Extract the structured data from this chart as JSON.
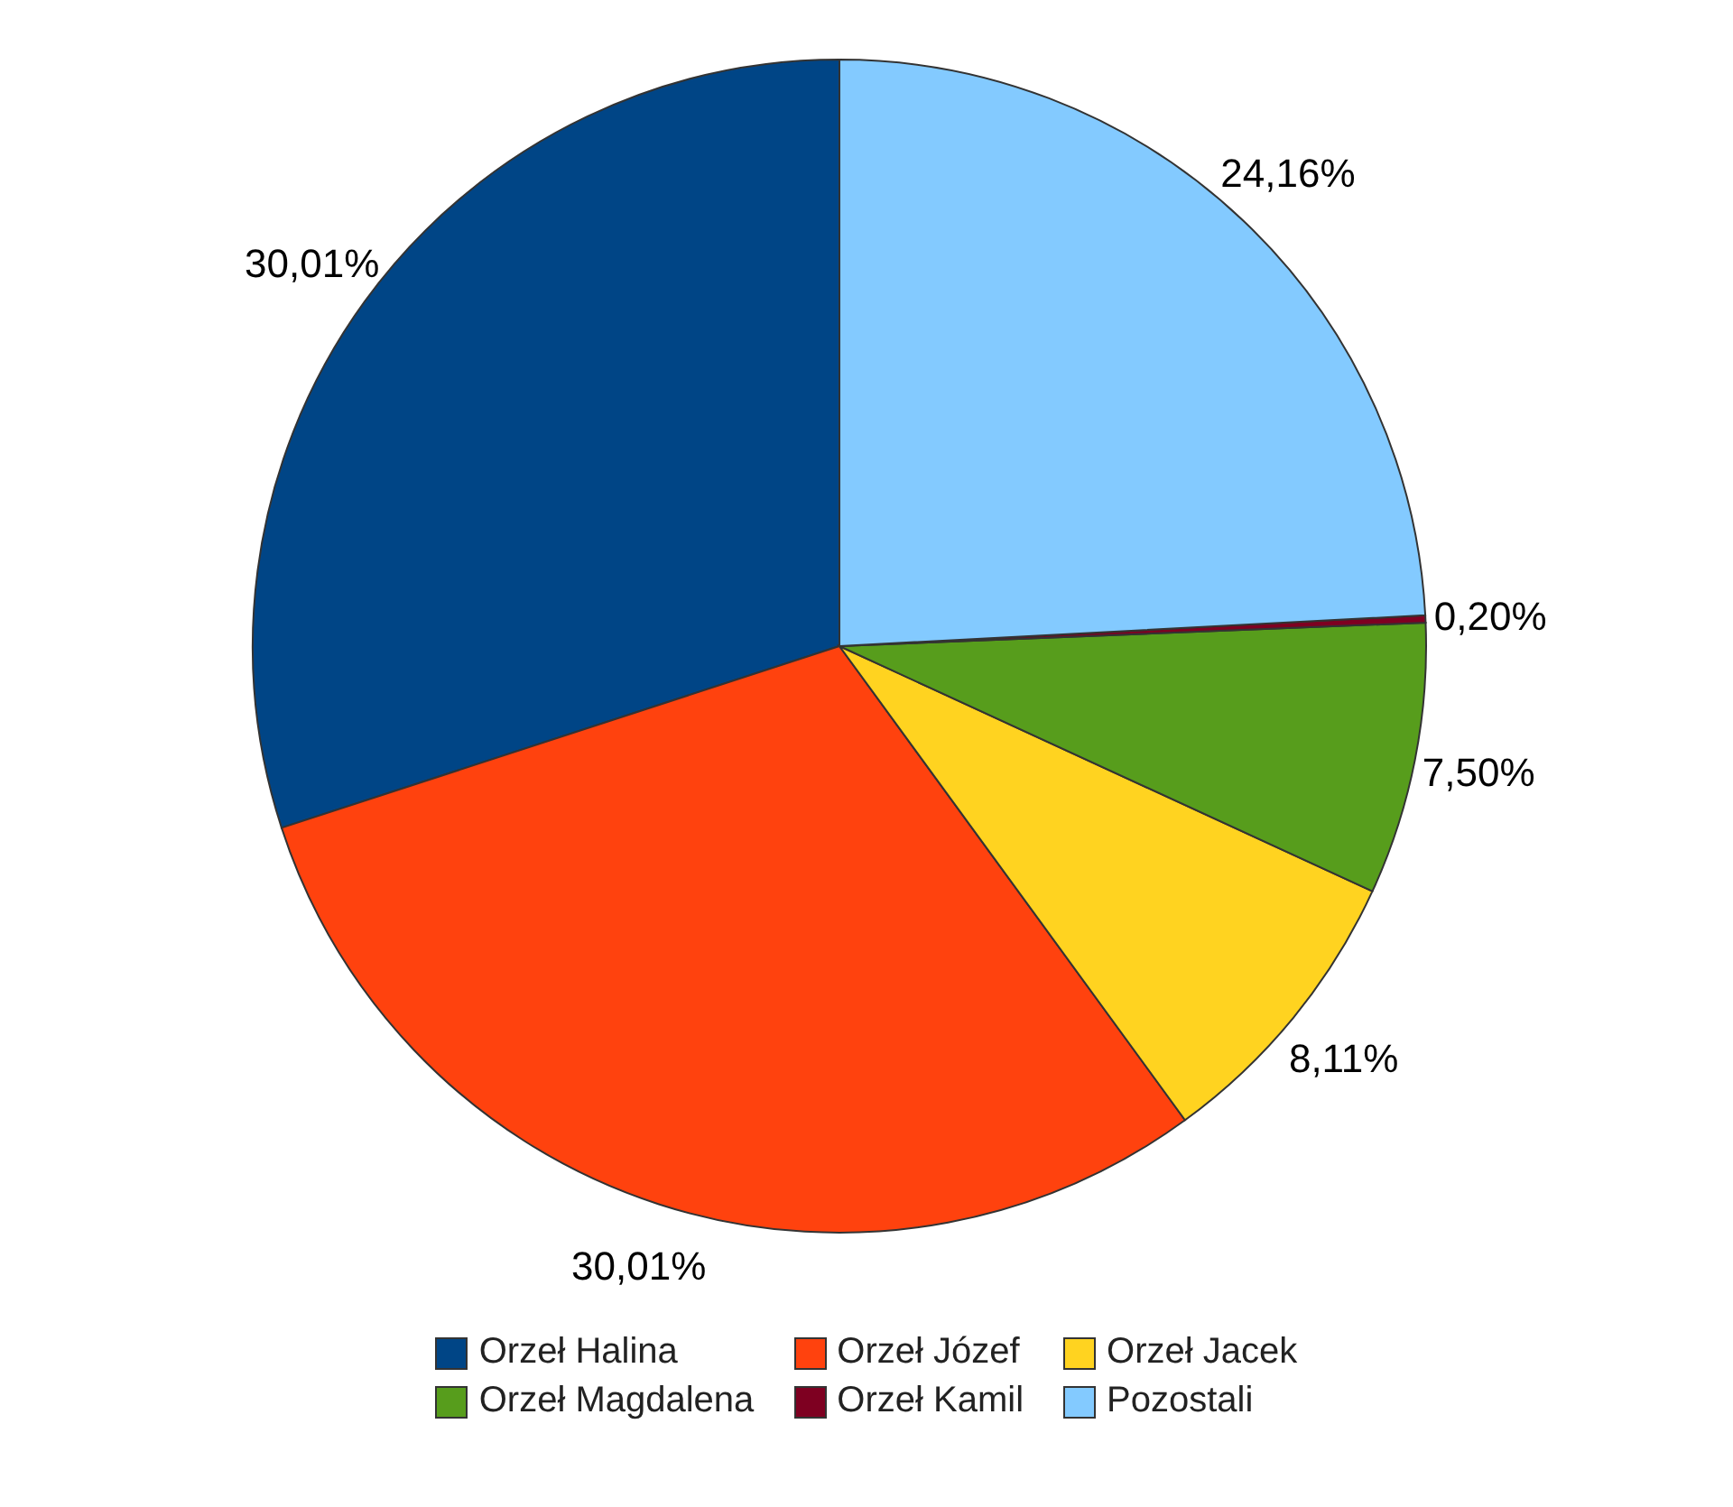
{
  "chart_data": {
    "type": "pie",
    "categories": [
      "Orzeł Halina",
      "Orzeł Józef",
      "Orzeł Jacek",
      "Orzeł Magdalena",
      "Orzeł Kamil",
      "Pozostali"
    ],
    "values": [
      30.01,
      30.01,
      8.11,
      7.5,
      0.2,
      24.16
    ],
    "value_labels": [
      "30,01%",
      "30,01%",
      "8,11%",
      "7,50%",
      "0,20%",
      "24,16%"
    ],
    "colors": [
      "#004586",
      "#ff420e",
      "#ffd320",
      "#579d1c",
      "#7e0021",
      "#83caff"
    ],
    "legend": "bottom"
  }
}
